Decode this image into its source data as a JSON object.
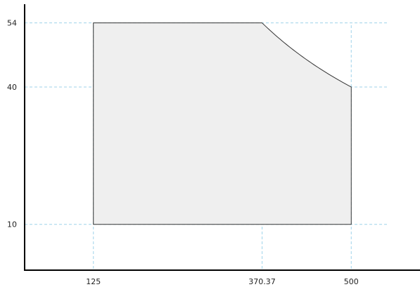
{
  "chart_data": {
    "type": "area",
    "title": "",
    "xlabel": "",
    "ylabel": "",
    "xlim": [
      25,
      600
    ],
    "ylim": [
      0,
      59
    ],
    "x_ticks": [
      {
        "value": 125,
        "label": "125"
      },
      {
        "value": 370.37,
        "label": "370.37"
      },
      {
        "value": 500,
        "label": "500"
      }
    ],
    "y_ticks": [
      {
        "value": 10,
        "label": "10"
      },
      {
        "value": 40,
        "label": "40"
      },
      {
        "value": 54,
        "label": "54"
      }
    ],
    "grid": "dashed guide lines at tick values",
    "region": {
      "fill": "#efefef",
      "stroke": "#333333",
      "boundary": [
        [
          125,
          10
        ],
        [
          125,
          54
        ],
        [
          370.37,
          54
        ],
        {
          "curve": "constant-product",
          "from": [
            370.37,
            54
          ],
          "to": [
            500,
            40
          ]
        },
        [
          500,
          10
        ]
      ]
    },
    "colors": {
      "guide": "#9fd3ea",
      "axis": "#000000",
      "region_fill": "#efefef",
      "region_stroke": "#333333"
    }
  }
}
